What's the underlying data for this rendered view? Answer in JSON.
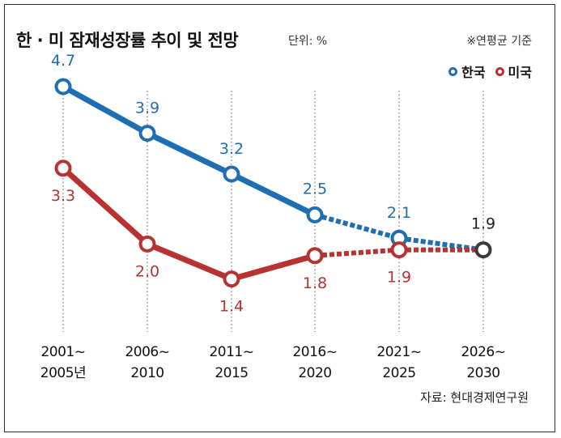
{
  "title": "한 · 미 잠재성장률 추이 및 전망",
  "unit": "단위: %",
  "note": "※연평균 기준",
  "source": "자료: 현대경제연구원",
  "chart_data": {
    "type": "line",
    "categories": [
      [
        "2001~",
        "2005년"
      ],
      [
        "2006~",
        "2010"
      ],
      [
        "2011~",
        "2015"
      ],
      [
        "2016~",
        "2020"
      ],
      [
        "2021~",
        "2025"
      ],
      [
        "2026~",
        "2030"
      ]
    ],
    "series": [
      {
        "name": "한국",
        "color": "#1f6db3",
        "values": [
          4.7,
          3.9,
          3.2,
          2.5,
          2.1,
          1.9
        ],
        "labels": [
          "4.7",
          "3.9",
          "3.2",
          "2.5",
          "2.1",
          "1.9"
        ],
        "actual_until_index": 3
      },
      {
        "name": "미국",
        "color": "#b83232",
        "values": [
          3.3,
          2.0,
          1.4,
          1.8,
          1.9,
          1.9
        ],
        "labels": [
          "3.3",
          "2.0",
          "1.4",
          "1.8",
          "1.9",
          ""
        ],
        "actual_until_index": 3
      }
    ],
    "final_point_color": "#3a3a3a",
    "grid": "dotted vertical lines per category",
    "legend_position": "top-right"
  }
}
